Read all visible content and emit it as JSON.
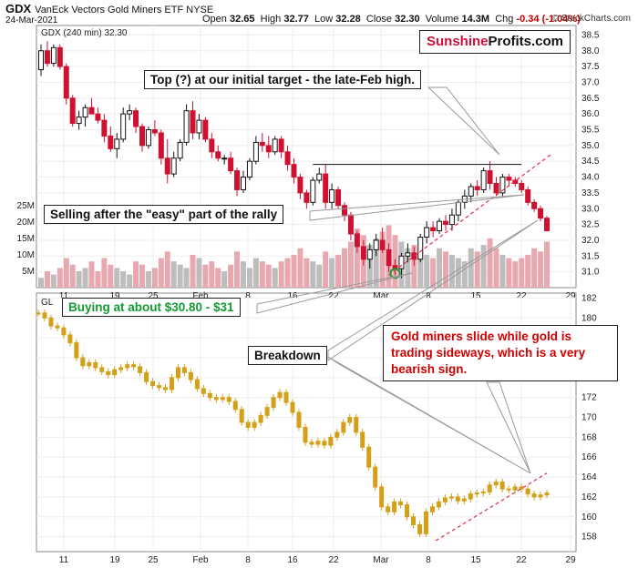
{
  "header": {
    "symbol": "GDX",
    "name": "VanEck Vectors Gold Miners ETF",
    "exchange": "NYSE",
    "date": "24-Mar-2021",
    "open_label": "Open",
    "open": "32.65",
    "high_label": "High",
    "high": "32.77",
    "low_label": "Low",
    "low": "32.28",
    "close_label": "Close",
    "close": "32.30",
    "volume_label": "Volume",
    "volume": "14.3M",
    "chg_label": "Chg",
    "chg": "-0.34 (-1.04%)",
    "credit": "© StockCharts.com"
  },
  "brand": {
    "part1": "Sunshine",
    "part2": "Profits.com"
  },
  "annotations": {
    "top": "Top (?) at our initial target - the late-Feb high.",
    "selling": "Selling after the \"easy\" part of the rally",
    "buying": "Buying at about $30.80 - $31",
    "breakdown": "Breakdown",
    "gold_slide": "Gold miners slide while gold is trading sideways, which is a very bearish sign."
  },
  "colors": {
    "up": "#111111",
    "down": "#d01030",
    "gold": "#d4a017",
    "vol_down": "#e8a8b0",
    "vol_up": "#bdbdbd",
    "trend": "#e03050",
    "brand_red": "#d0103a",
    "green": "#139a31"
  },
  "chart_data": [
    {
      "type": "candlestick",
      "legend": "GDX (240 min) 32.30",
      "x_ticks": [
        "11",
        "19",
        "25",
        "Feb",
        "8",
        "16",
        "22",
        "Mar",
        "8",
        "15",
        "22",
        "29"
      ],
      "ylim": [
        30.5,
        38.8
      ],
      "y_ticks": [
        31.0,
        31.5,
        32.0,
        32.5,
        33.0,
        33.5,
        34.0,
        34.5,
        35.0,
        35.5,
        36.0,
        36.5,
        37.0,
        37.5,
        38.0,
        38.5
      ],
      "volume_ticks": [
        "5M",
        "10M",
        "15M",
        "20M",
        "25M"
      ],
      "candles": [
        [
          37.4,
          38.2,
          37.2,
          38.0
        ],
        [
          38.0,
          38.3,
          37.5,
          37.6
        ],
        [
          37.6,
          38.2,
          37.5,
          38.1
        ],
        [
          38.1,
          38.2,
          37.4,
          37.5
        ],
        [
          37.5,
          37.6,
          36.3,
          36.5
        ],
        [
          36.5,
          36.6,
          35.6,
          35.7
        ],
        [
          35.7,
          36.1,
          35.5,
          35.9
        ],
        [
          35.9,
          36.3,
          35.6,
          36.2
        ],
        [
          36.2,
          36.5,
          36.0,
          36.0
        ],
        [
          36.0,
          36.2,
          35.7,
          35.8
        ],
        [
          35.8,
          36.0,
          35.1,
          35.3
        ],
        [
          35.3,
          35.6,
          34.8,
          34.9
        ],
        [
          34.9,
          35.4,
          34.6,
          35.2
        ],
        [
          35.2,
          36.2,
          35.1,
          36.0
        ],
        [
          36.0,
          36.3,
          35.8,
          36.1
        ],
        [
          36.1,
          36.2,
          35.4,
          35.6
        ],
        [
          35.6,
          35.7,
          34.8,
          35.0
        ],
        [
          35.0,
          35.6,
          34.9,
          35.5
        ],
        [
          35.5,
          35.8,
          35.3,
          35.4
        ],
        [
          35.4,
          35.5,
          34.4,
          34.6
        ],
        [
          34.6,
          35.2,
          33.8,
          34.1
        ],
        [
          34.1,
          34.8,
          34.0,
          34.6
        ],
        [
          34.6,
          35.2,
          34.5,
          35.1
        ],
        [
          35.1,
          36.3,
          35.0,
          36.1
        ],
        [
          36.1,
          36.4,
          35.2,
          35.4
        ],
        [
          35.4,
          36.0,
          35.2,
          35.8
        ],
        [
          35.8,
          35.9,
          35.1,
          35.2
        ],
        [
          35.2,
          35.4,
          34.6,
          34.8
        ],
        [
          34.8,
          35.0,
          34.5,
          34.6
        ],
        [
          34.6,
          34.7,
          34.4,
          34.6
        ],
        [
          34.6,
          34.8,
          34.1,
          34.2
        ],
        [
          34.2,
          34.3,
          33.4,
          33.6
        ],
        [
          33.6,
          34.2,
          33.5,
          34.0
        ],
        [
          34.0,
          34.6,
          33.9,
          34.5
        ],
        [
          34.5,
          35.3,
          34.4,
          35.1
        ],
        [
          35.1,
          35.4,
          34.8,
          35.0
        ],
        [
          35.0,
          35.3,
          34.6,
          34.8
        ],
        [
          34.8,
          35.3,
          34.7,
          35.2
        ],
        [
          35.2,
          35.3,
          34.6,
          34.8
        ],
        [
          34.8,
          35.0,
          34.2,
          34.4
        ],
        [
          34.4,
          34.6,
          33.8,
          34.0
        ],
        [
          34.0,
          34.1,
          33.3,
          33.5
        ],
        [
          33.5,
          33.6,
          33.0,
          33.2
        ],
        [
          33.2,
          34.0,
          33.1,
          33.9
        ],
        [
          33.9,
          34.3,
          33.8,
          34.1
        ],
        [
          34.1,
          34.4,
          33.0,
          33.2
        ],
        [
          33.2,
          33.8,
          33.0,
          33.6
        ],
        [
          33.6,
          33.7,
          33.0,
          33.1
        ],
        [
          33.1,
          33.2,
          32.6,
          32.8
        ],
        [
          32.8,
          32.9,
          32.0,
          32.2
        ],
        [
          32.2,
          32.3,
          31.6,
          31.8
        ],
        [
          31.8,
          32.0,
          31.2,
          31.4
        ],
        [
          31.4,
          31.9,
          31.1,
          31.7
        ],
        [
          31.7,
          32.2,
          31.5,
          32.0
        ],
        [
          32.0,
          32.4,
          31.6,
          31.7
        ],
        [
          31.7,
          31.9,
          31.0,
          31.2
        ],
        [
          31.2,
          31.4,
          30.9,
          31.1
        ],
        [
          31.1,
          31.6,
          30.8,
          31.5
        ],
        [
          31.5,
          31.9,
          31.3,
          31.6
        ],
        [
          31.6,
          31.8,
          31.2,
          31.4
        ],
        [
          31.4,
          32.2,
          31.3,
          32.1
        ],
        [
          32.1,
          32.6,
          31.9,
          32.4
        ],
        [
          32.4,
          32.6,
          32.1,
          32.3
        ],
        [
          32.3,
          32.7,
          32.2,
          32.6
        ],
        [
          32.6,
          32.8,
          32.3,
          32.5
        ],
        [
          32.5,
          33.0,
          32.3,
          32.8
        ],
        [
          32.8,
          33.3,
          32.6,
          33.2
        ],
        [
          33.2,
          33.6,
          33.0,
          33.4
        ],
        [
          33.4,
          33.8,
          33.2,
          33.7
        ],
        [
          33.7,
          33.9,
          33.4,
          33.6
        ],
        [
          33.6,
          34.3,
          33.5,
          34.2
        ],
        [
          34.2,
          34.5,
          33.6,
          33.8
        ],
        [
          33.8,
          34.0,
          33.4,
          33.5
        ],
        [
          33.5,
          34.1,
          33.4,
          34.0
        ],
        [
          34.0,
          34.1,
          33.7,
          33.9
        ],
        [
          33.9,
          34.0,
          33.7,
          33.8
        ],
        [
          33.8,
          33.9,
          33.5,
          33.6
        ],
        [
          33.6,
          33.7,
          33.1,
          33.2
        ],
        [
          33.2,
          33.3,
          32.9,
          33.0
        ],
        [
          33.0,
          33.1,
          32.6,
          32.7
        ],
        [
          32.7,
          32.77,
          32.28,
          32.3
        ]
      ],
      "volumes": [
        3,
        5,
        4,
        6,
        9,
        7,
        5,
        6,
        8,
        5,
        9,
        7,
        6,
        5,
        4,
        8,
        7,
        5,
        6,
        9,
        11,
        8,
        7,
        6,
        10,
        9,
        7,
        8,
        6,
        5,
        7,
        11,
        8,
        6,
        9,
        8,
        7,
        6,
        8,
        9,
        10,
        12,
        9,
        8,
        7,
        11,
        9,
        10,
        12,
        14,
        18,
        16,
        13,
        15,
        17,
        19,
        16,
        14,
        12,
        13,
        11,
        10,
        9,
        12,
        11,
        10,
        9,
        8,
        12,
        11,
        13,
        15,
        12,
        10,
        9,
        8,
        9,
        10,
        12,
        11,
        14
      ],
      "resistance_level": 34.4,
      "annotations": [
        "Top (?) at our initial target - the late-Feb high.",
        "Selling after the \"easy\" part of the rally",
        "Buying at about $30.80 - $31",
        "Breakdown",
        "Gold miners slide while gold is trading sideways, which is a very bearish sign."
      ]
    },
    {
      "type": "candlestick",
      "legend": "GL",
      "x_ticks": [
        "11",
        "19",
        "25",
        "Feb",
        "8",
        "16",
        "22",
        "Mar",
        "8",
        "15",
        "22",
        "29"
      ],
      "ylim": [
        156.5,
        182.5
      ],
      "y_ticks": [
        158,
        160,
        162,
        164,
        166,
        168,
        170,
        172,
        174,
        176,
        178,
        180,
        182
      ],
      "closes": [
        180.5,
        180.0,
        179.2,
        179.0,
        178.3,
        177.5,
        176.0,
        175.2,
        175.5,
        175.0,
        174.6,
        174.3,
        174.8,
        175.0,
        175.3,
        175.1,
        174.5,
        173.6,
        173.2,
        173.0,
        172.8,
        174.0,
        175.0,
        174.5,
        173.8,
        172.9,
        172.4,
        172.0,
        171.8,
        172.0,
        171.6,
        170.8,
        169.5,
        169.0,
        169.5,
        170.2,
        171.0,
        172.0,
        172.5,
        171.5,
        170.5,
        169.0,
        167.5,
        167.3,
        167.6,
        167.2,
        168.0,
        168.5,
        169.5,
        170.0,
        168.5,
        167.0,
        165.0,
        163.0,
        161.0,
        160.5,
        161.5,
        161.2,
        160.0,
        159.2,
        158.3,
        160.5,
        161.0,
        161.5,
        161.9,
        162.0,
        161.6,
        161.8,
        162.3,
        162.4,
        162.5,
        163.2,
        163.5,
        162.8,
        162.7,
        163.0,
        162.8,
        162.3,
        162.0,
        162.2,
        162.4
      ]
    }
  ]
}
